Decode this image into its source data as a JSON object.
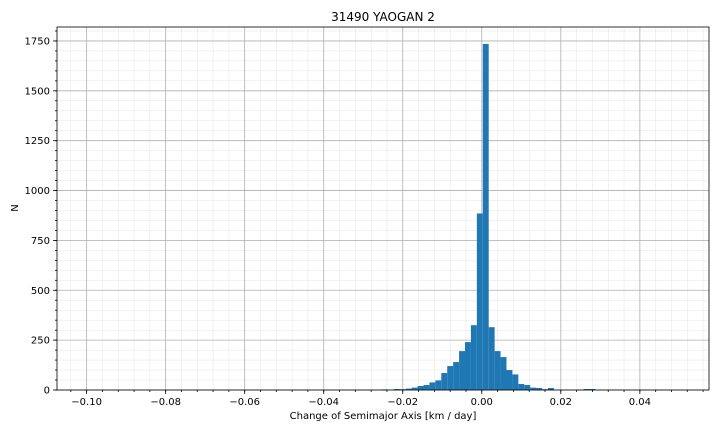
{
  "chart_data": {
    "type": "bar",
    "title": "31490 YAOGAN 2",
    "xlabel": "Change of Semimajor Axis [km / day]",
    "ylabel": "N",
    "xlim": [
      -0.1075,
      0.0575
    ],
    "ylim": [
      0,
      1820
    ],
    "xticks": [
      -0.1,
      -0.08,
      -0.06,
      -0.04,
      -0.02,
      0.0,
      0.02,
      0.04
    ],
    "xtick_labels": [
      "−0.10",
      "−0.08",
      "−0.06",
      "−0.04",
      "−0.02",
      "0.00",
      "0.02",
      "0.04"
    ],
    "yticks": [
      0,
      250,
      500,
      750,
      1000,
      1250,
      1500,
      1750
    ],
    "ytick_labels": [
      "0",
      "250",
      "500",
      "750",
      "1000",
      "1250",
      "1500",
      "1750"
    ],
    "grid": true,
    "bar_color": "#1f77b4",
    "bin_width": 0.0015,
    "bins": [
      {
        "x": -0.0245,
        "n": 3
      },
      {
        "x": -0.0215,
        "n": 5
      },
      {
        "x": -0.02,
        "n": 4
      },
      {
        "x": -0.0185,
        "n": 7
      },
      {
        "x": -0.017,
        "n": 12
      },
      {
        "x": -0.0155,
        "n": 20
      },
      {
        "x": -0.014,
        "n": 25
      },
      {
        "x": -0.0125,
        "n": 38
      },
      {
        "x": -0.011,
        "n": 48
      },
      {
        "x": -0.0095,
        "n": 85
      },
      {
        "x": -0.008,
        "n": 120
      },
      {
        "x": -0.0065,
        "n": 140
      },
      {
        "x": -0.005,
        "n": 195
      },
      {
        "x": -0.0035,
        "n": 240
      },
      {
        "x": -0.002,
        "n": 325
      },
      {
        "x": -0.0005,
        "n": 885
      },
      {
        "x": 0.001,
        "n": 1735
      },
      {
        "x": 0.0025,
        "n": 315
      },
      {
        "x": 0.004,
        "n": 195
      },
      {
        "x": 0.0055,
        "n": 165
      },
      {
        "x": 0.007,
        "n": 100
      },
      {
        "x": 0.0085,
        "n": 78
      },
      {
        "x": 0.01,
        "n": 30
      },
      {
        "x": 0.0115,
        "n": 25
      },
      {
        "x": 0.013,
        "n": 12
      },
      {
        "x": 0.0145,
        "n": 10
      },
      {
        "x": 0.016,
        "n": 4
      },
      {
        "x": 0.0175,
        "n": 10
      },
      {
        "x": 0.0265,
        "n": 5
      },
      {
        "x": 0.028,
        "n": 5
      }
    ]
  }
}
